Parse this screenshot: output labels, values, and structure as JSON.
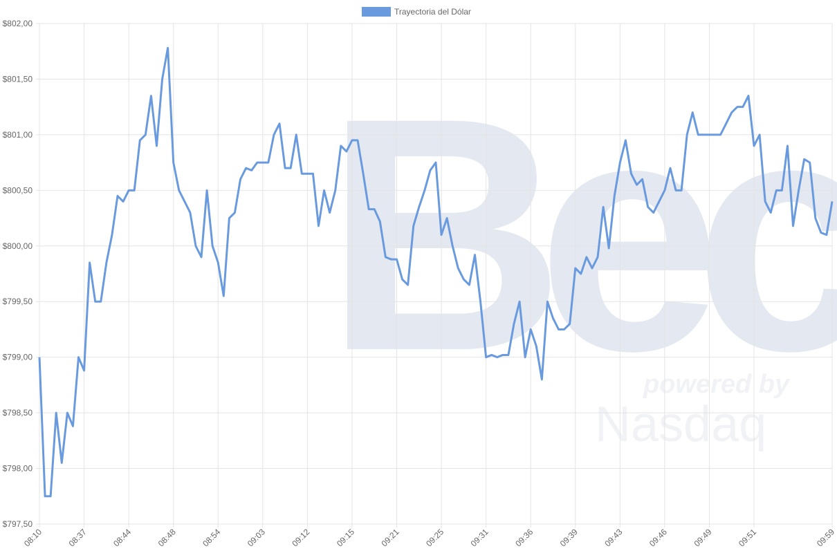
{
  "chart_data": {
    "type": "line",
    "watermark": [
      "Bec",
      "powered by",
      "Nasdaq"
    ],
    "categories": [
      "08:10",
      null,
      null,
      null,
      null,
      null,
      null,
      null,
      "08:37",
      null,
      null,
      null,
      null,
      null,
      null,
      null,
      "08:44",
      null,
      null,
      null,
      null,
      null,
      null,
      null,
      "08:48",
      null,
      null,
      null,
      null,
      null,
      null,
      null,
      "08:54",
      null,
      null,
      null,
      null,
      null,
      null,
      null,
      "09:03",
      null,
      null,
      null,
      null,
      null,
      null,
      null,
      "09:12",
      null,
      null,
      null,
      null,
      null,
      null,
      null,
      "09:15",
      null,
      null,
      null,
      null,
      null,
      null,
      null,
      "09:21",
      null,
      null,
      null,
      null,
      null,
      null,
      null,
      "09:25",
      null,
      null,
      null,
      null,
      null,
      null,
      null,
      "09:31",
      null,
      null,
      null,
      null,
      null,
      null,
      null,
      "09:36",
      null,
      null,
      null,
      null,
      null,
      null,
      null,
      "09:39",
      null,
      null,
      null,
      null,
      null,
      null,
      null,
      "09:43",
      null,
      null,
      null,
      null,
      null,
      null,
      null,
      "09:46",
      null,
      null,
      null,
      null,
      null,
      null,
      null,
      "09:49",
      null,
      null,
      null,
      null,
      null,
      null,
      null,
      "09:51",
      null,
      null,
      null,
      null,
      null,
      null,
      null,
      null,
      null,
      null,
      null,
      null,
      null,
      "09:59"
    ],
    "series": [
      {
        "name": "Trayectoria del Dólar",
        "color": "#6a9ade",
        "values": [
          799.0,
          797.75,
          797.75,
          798.5,
          798.05,
          798.5,
          798.38,
          799.0,
          798.88,
          799.85,
          799.5,
          799.5,
          799.85,
          800.1,
          800.45,
          800.4,
          800.5,
          800.5,
          800.95,
          801.0,
          801.35,
          800.9,
          801.5,
          801.78,
          800.75,
          800.5,
          800.4,
          800.3,
          800.0,
          799.9,
          800.5,
          800.0,
          799.85,
          799.55,
          800.25,
          800.3,
          800.6,
          800.7,
          800.68,
          800.75,
          800.75,
          800.75,
          801.0,
          801.1,
          800.7,
          800.7,
          801.0,
          800.65,
          800.65,
          800.65,
          800.18,
          800.5,
          800.3,
          800.5,
          800.9,
          800.85,
          800.95,
          800.95,
          800.65,
          800.33,
          800.33,
          800.22,
          799.9,
          799.88,
          799.88,
          799.7,
          799.65,
          800.18,
          800.35,
          800.5,
          800.68,
          800.75,
          800.1,
          800.25,
          800.0,
          799.8,
          799.7,
          799.65,
          799.92,
          799.5,
          799.0,
          799.02,
          799.0,
          799.02,
          799.02,
          799.3,
          799.5,
          799.0,
          799.25,
          799.1,
          798.8,
          799.5,
          799.35,
          799.25,
          799.25,
          799.3,
          799.8,
          799.75,
          799.9,
          799.8,
          799.9,
          800.35,
          799.98,
          800.45,
          800.75,
          800.95,
          800.65,
          800.55,
          800.6,
          800.35,
          800.3,
          800.4,
          800.5,
          800.7,
          800.5,
          800.5,
          801.0,
          801.2,
          801.0,
          801.0,
          801.0,
          801.0,
          801.0,
          801.1,
          801.2,
          801.25,
          801.25,
          801.35,
          800.9,
          801.0,
          800.4,
          800.3,
          800.5,
          800.5,
          800.9,
          800.18,
          800.5,
          800.78,
          800.75,
          800.25,
          800.12,
          800.1,
          800.4
        ]
      }
    ],
    "ylim": [
      797.5,
      802
    ],
    "yticks": [
      {
        "value": 797.5,
        "label": "$797,50"
      },
      {
        "value": 798,
        "label": "$798,00"
      },
      {
        "value": 798.5,
        "label": "$798,50"
      },
      {
        "value": 799,
        "label": "$799,00"
      },
      {
        "value": 799.5,
        "label": "$799,50"
      },
      {
        "value": 800,
        "label": "$800,00"
      },
      {
        "value": 800.5,
        "label": "$800,50"
      },
      {
        "value": 801,
        "label": "$801,00"
      },
      {
        "value": 801.5,
        "label": "$801,50"
      },
      {
        "value": 802,
        "label": "$802,00"
      }
    ],
    "grid": true,
    "legend": "top"
  }
}
